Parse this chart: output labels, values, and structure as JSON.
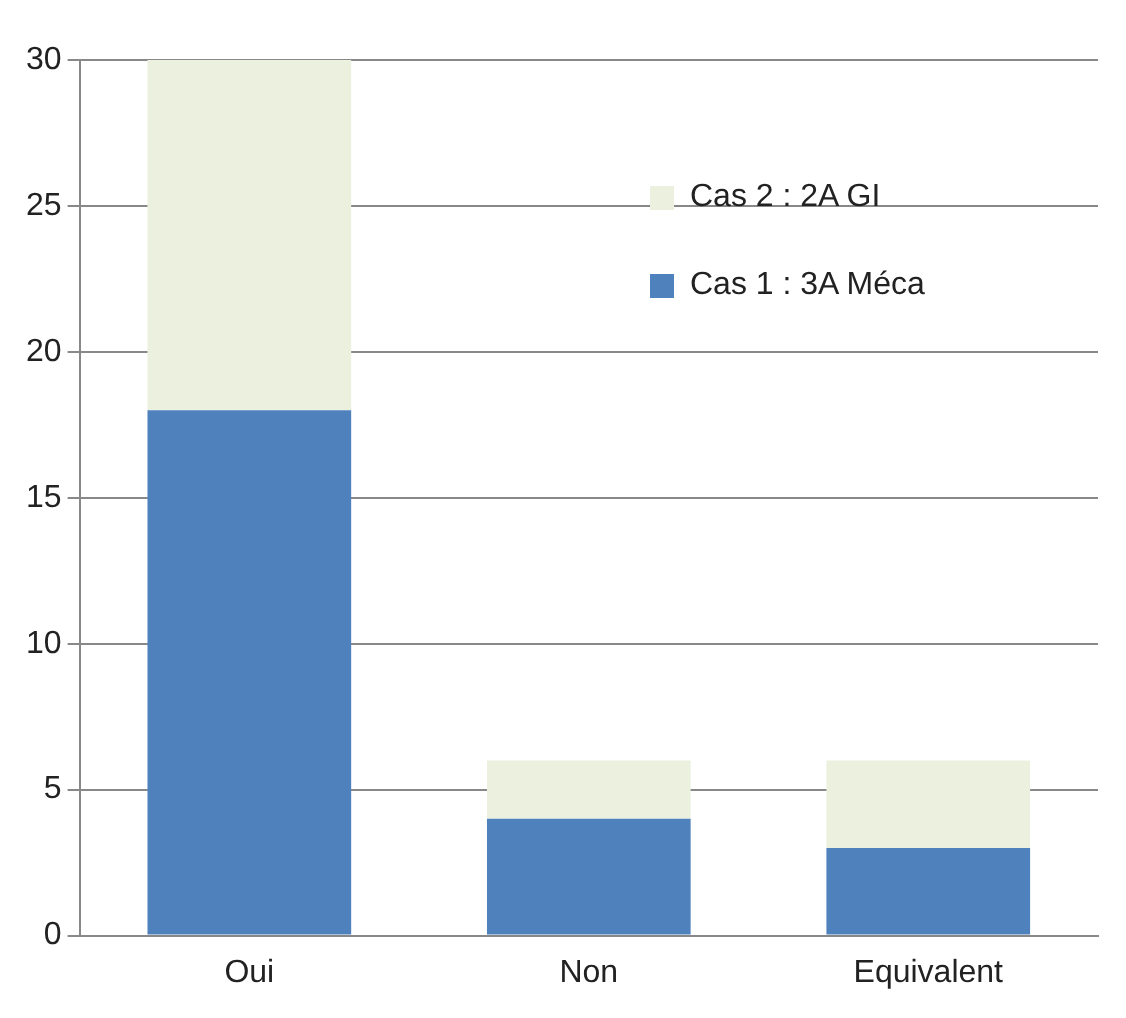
{
  "chart_data": {
    "type": "bar",
    "stacked": true,
    "categories": [
      "Oui",
      "Non",
      "Equivalent"
    ],
    "series": [
      {
        "name": "Cas 1 : 3A Méca",
        "color": "#4f81bd",
        "values": [
          18,
          4,
          3
        ]
      },
      {
        "name": "Cas 2 : 2A GI",
        "color": "#ebf1de",
        "values": [
          12,
          2,
          3
        ]
      }
    ],
    "ylim": [
      0,
      30
    ],
    "yticks": [
      0,
      5,
      10,
      15,
      20,
      25,
      30
    ],
    "grid": "y",
    "legend": "top right"
  }
}
